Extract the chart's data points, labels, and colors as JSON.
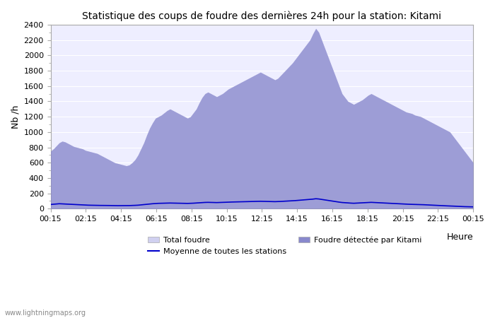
{
  "title": "Statistique des coups de foudre des dernières 24h pour la station: Kitami",
  "ylabel": "Nb /h",
  "xlabel_right": "Heure",
  "watermark": "www.lightningmaps.org",
  "ylim": [
    0,
    2400
  ],
  "yticks": [
    0,
    200,
    400,
    600,
    800,
    1000,
    1200,
    1400,
    1600,
    1800,
    2000,
    2200,
    2400
  ],
  "x_labels": [
    "00:15",
    "02:15",
    "04:15",
    "06:15",
    "08:15",
    "10:15",
    "12:15",
    "14:15",
    "16:15",
    "18:15",
    "20:15",
    "22:15",
    "00:15"
  ],
  "background_color": "#ffffff",
  "plot_bg_color": "#eeeeff",
  "total_color": "#d0d0f0",
  "kitami_color": "#8888cc",
  "mean_color": "#0000cc",
  "legend_total": "Total foudre",
  "legend_kitami": "Foudre détectée par Kitami",
  "legend_mean": "Moyenne de toutes les stations",
  "total_foudre": [
    750,
    780,
    820,
    860,
    880,
    870,
    850,
    830,
    810,
    800,
    790,
    780,
    760,
    750,
    740,
    730,
    720,
    700,
    680,
    660,
    640,
    620,
    600,
    590,
    580,
    570,
    560,
    570,
    600,
    640,
    700,
    780,
    860,
    960,
    1050,
    1120,
    1180,
    1200,
    1220,
    1250,
    1280,
    1300,
    1280,
    1260,
    1240,
    1220,
    1200,
    1180,
    1200,
    1250,
    1300,
    1380,
    1450,
    1500,
    1520,
    1500,
    1480,
    1460,
    1480,
    1500,
    1530,
    1560,
    1580,
    1600,
    1620,
    1640,
    1660,
    1680,
    1700,
    1720,
    1740,
    1760,
    1780,
    1760,
    1740,
    1720,
    1700,
    1680,
    1700,
    1740,
    1780,
    1820,
    1860,
    1900,
    1950,
    2000,
    2050,
    2100,
    2150,
    2200,
    2280,
    2350,
    2300,
    2200,
    2100,
    2000,
    1900,
    1800,
    1700,
    1600,
    1500,
    1450,
    1400,
    1380,
    1360,
    1380,
    1400,
    1420,
    1450,
    1480,
    1500,
    1480,
    1460,
    1440,
    1420,
    1400,
    1380,
    1360,
    1340,
    1320,
    1300,
    1280,
    1260,
    1250,
    1240,
    1220,
    1210,
    1200,
    1180,
    1160,
    1140,
    1120,
    1100,
    1080,
    1060,
    1040,
    1020,
    1000,
    950,
    900,
    850,
    800,
    750,
    700,
    650,
    600
  ],
  "kitami_foudre": [
    750,
    780,
    820,
    860,
    880,
    870,
    850,
    830,
    810,
    800,
    790,
    780,
    760,
    750,
    740,
    730,
    720,
    700,
    680,
    660,
    640,
    620,
    600,
    590,
    580,
    570,
    560,
    570,
    600,
    640,
    700,
    780,
    860,
    960,
    1050,
    1120,
    1180,
    1200,
    1220,
    1250,
    1280,
    1300,
    1280,
    1260,
    1240,
    1220,
    1200,
    1180,
    1200,
    1250,
    1300,
    1380,
    1450,
    1500,
    1520,
    1500,
    1480,
    1460,
    1480,
    1500,
    1530,
    1560,
    1580,
    1600,
    1620,
    1640,
    1660,
    1680,
    1700,
    1720,
    1740,
    1760,
    1780,
    1760,
    1740,
    1720,
    1700,
    1680,
    1700,
    1740,
    1780,
    1820,
    1860,
    1900,
    1950,
    2000,
    2050,
    2100,
    2150,
    2200,
    2280,
    2350,
    2300,
    2200,
    2100,
    2000,
    1900,
    1800,
    1700,
    1600,
    1500,
    1450,
    1400,
    1380,
    1360,
    1380,
    1400,
    1420,
    1450,
    1480,
    1500,
    1480,
    1460,
    1440,
    1420,
    1400,
    1380,
    1360,
    1340,
    1320,
    1300,
    1280,
    1260,
    1250,
    1240,
    1220,
    1210,
    1200,
    1180,
    1160,
    1140,
    1120,
    1100,
    1080,
    1060,
    1040,
    1020,
    1000,
    950,
    900,
    850,
    800,
    750,
    700,
    650,
    600
  ],
  "mean_foudre": [
    55,
    58,
    62,
    65,
    63,
    60,
    58,
    56,
    54,
    52,
    50,
    48,
    47,
    46,
    45,
    44,
    44,
    43,
    43,
    42,
    42,
    41,
    40,
    40,
    40,
    40,
    40,
    41,
    42,
    44,
    46,
    50,
    54,
    58,
    62,
    65,
    68,
    70,
    71,
    72,
    73,
    74,
    73,
    72,
    71,
    70,
    70,
    69,
    70,
    72,
    74,
    77,
    80,
    82,
    83,
    82,
    81,
    80,
    81,
    82,
    84,
    86,
    87,
    88,
    89,
    90,
    91,
    92,
    93,
    94,
    95,
    96,
    97,
    96,
    95,
    94,
    93,
    92,
    93,
    95,
    97,
    99,
    101,
    103,
    106,
    109,
    112,
    115,
    118,
    121,
    125,
    130,
    127,
    121,
    115,
    109,
    103,
    97,
    91,
    86,
    81,
    78,
    75,
    73,
    71,
    73,
    75,
    77,
    79,
    81,
    83,
    81,
    79,
    77,
    75,
    73,
    71,
    69,
    67,
    65,
    63,
    61,
    59,
    58,
    57,
    56,
    55,
    54,
    52,
    50,
    48,
    46,
    44,
    42,
    40,
    38,
    37,
    36,
    34,
    32,
    30,
    28,
    27,
    26,
    25,
    24
  ]
}
